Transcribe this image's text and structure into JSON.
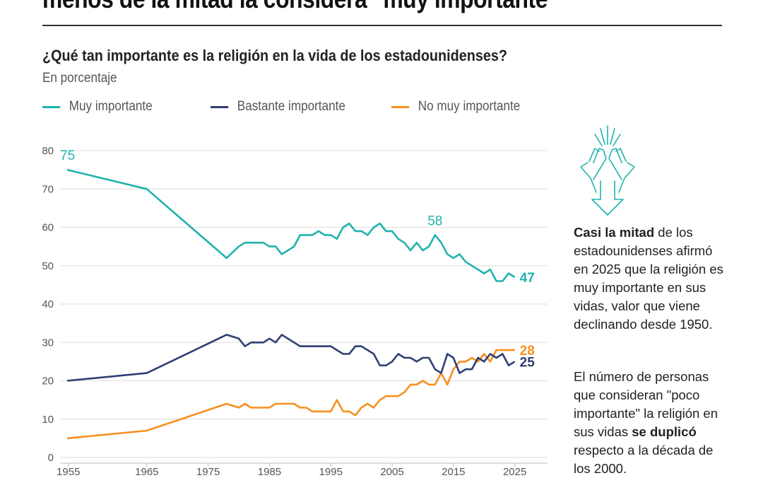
{
  "headline": "menos de la mitad la considera \"muy importante\"",
  "colors": {
    "muy": "#1fb3ad",
    "bastante": "#2e3f73",
    "no_muy": "#f7901e"
  },
  "side_panel": {
    "icon": "hands-clapping-down-arrow-icon",
    "p1_bold": "Casi la mitad",
    "p1_rest": " de los estadounidenses afirmó en 2025 que la religión es muy importante en sus vidas, valor que viene declinando desde 1950.",
    "p2_start": "El número de personas que consideran \"poco importante\" la religión en sus vidas ",
    "p2_bold": "se duplicó",
    "p2_end": " respecto a la década de los 2000."
  },
  "chart_data": {
    "type": "line",
    "title": "¿Qué tan importante es la religión en la vida de los estadounidenses?",
    "subtitle": "En porcentaje",
    "xlabel": "",
    "ylabel": "",
    "ylim": [
      0,
      80
    ],
    "xlim": [
      1952,
      2025
    ],
    "yticks": [
      "0",
      "10",
      "20",
      "30",
      "40",
      "50",
      "60",
      "70",
      "80"
    ],
    "xticks": [
      "1955",
      "1965",
      "1975",
      "1985",
      "1995",
      "2005",
      "2015",
      "2025"
    ],
    "grid": true,
    "legend_position": "top",
    "series": [
      {
        "name": "Muy importante",
        "key": "muy",
        "x": [
          1952,
          1965,
          1978,
          1980,
          1981,
          1982,
          1983,
          1984,
          1985,
          1986,
          1987,
          1988,
          1989,
          1990,
          1991,
          1992,
          1993,
          1994,
          1995,
          1996,
          1997,
          1998,
          1999,
          2000,
          2001,
          2002,
          2003,
          2004,
          2005,
          2006,
          2007,
          2008,
          2009,
          2010,
          2011,
          2012,
          2013,
          2014,
          2015,
          2016,
          2017,
          2018,
          2019,
          2020,
          2021,
          2022,
          2023,
          2024,
          2025
        ],
        "y": [
          75,
          70,
          52,
          55,
          56,
          56,
          56,
          56,
          55,
          55,
          53,
          54,
          55,
          58,
          58,
          58,
          59,
          58,
          58,
          57,
          60,
          61,
          59,
          59,
          58,
          60,
          61,
          59,
          59,
          57,
          56,
          54,
          56,
          54,
          55,
          58,
          56,
          53,
          52,
          53,
          51,
          50,
          49,
          48,
          49,
          46,
          46,
          48,
          47
        ],
        "labels": [
          {
            "x": 1952,
            "text": "75"
          },
          {
            "x": 2012,
            "text": "58"
          },
          {
            "x": 2025,
            "text": "47"
          }
        ]
      },
      {
        "name": "Bastante importante",
        "key": "bastante",
        "x": [
          1952,
          1965,
          1978,
          1980,
          1981,
          1982,
          1983,
          1984,
          1985,
          1986,
          1987,
          1988,
          1989,
          1990,
          1991,
          1992,
          1993,
          1994,
          1995,
          1996,
          1997,
          1998,
          1999,
          2000,
          2001,
          2002,
          2003,
          2004,
          2005,
          2006,
          2007,
          2008,
          2009,
          2010,
          2011,
          2012,
          2013,
          2014,
          2015,
          2016,
          2017,
          2018,
          2019,
          2020,
          2021,
          2022,
          2023,
          2024,
          2025
        ],
        "y": [
          20,
          22,
          32,
          31,
          29,
          30,
          30,
          30,
          31,
          30,
          32,
          31,
          30,
          29,
          29,
          29,
          29,
          29,
          29,
          28,
          27,
          27,
          29,
          29,
          28,
          27,
          24,
          24,
          25,
          27,
          26,
          26,
          25,
          26,
          26,
          23,
          22,
          27,
          26,
          22,
          23,
          23,
          26,
          25,
          27,
          26,
          27,
          24,
          25
        ],
        "labels": [
          {
            "x": 2025,
            "text": "25"
          }
        ]
      },
      {
        "name": "No muy importante",
        "key": "no_muy",
        "x": [
          1952,
          1965,
          1978,
          1980,
          1981,
          1982,
          1983,
          1984,
          1985,
          1986,
          1987,
          1988,
          1989,
          1990,
          1991,
          1992,
          1993,
          1994,
          1995,
          1996,
          1997,
          1998,
          1999,
          2000,
          2001,
          2002,
          2003,
          2004,
          2005,
          2006,
          2007,
          2008,
          2009,
          2010,
          2011,
          2012,
          2013,
          2014,
          2015,
          2016,
          2017,
          2018,
          2019,
          2020,
          2021,
          2022,
          2023,
          2024,
          2025
        ],
        "y": [
          5,
          7,
          14,
          13,
          14,
          13,
          13,
          13,
          13,
          14,
          14,
          14,
          14,
          13,
          13,
          12,
          12,
          12,
          12,
          15,
          12,
          12,
          11,
          13,
          14,
          13,
          15,
          16,
          16,
          16,
          17,
          19,
          19,
          20,
          19,
          19,
          22,
          19,
          23,
          25,
          25,
          26,
          25,
          27,
          25,
          28,
          28,
          28,
          28
        ],
        "labels": [
          {
            "x": 2025,
            "text": "28"
          }
        ]
      }
    ]
  }
}
